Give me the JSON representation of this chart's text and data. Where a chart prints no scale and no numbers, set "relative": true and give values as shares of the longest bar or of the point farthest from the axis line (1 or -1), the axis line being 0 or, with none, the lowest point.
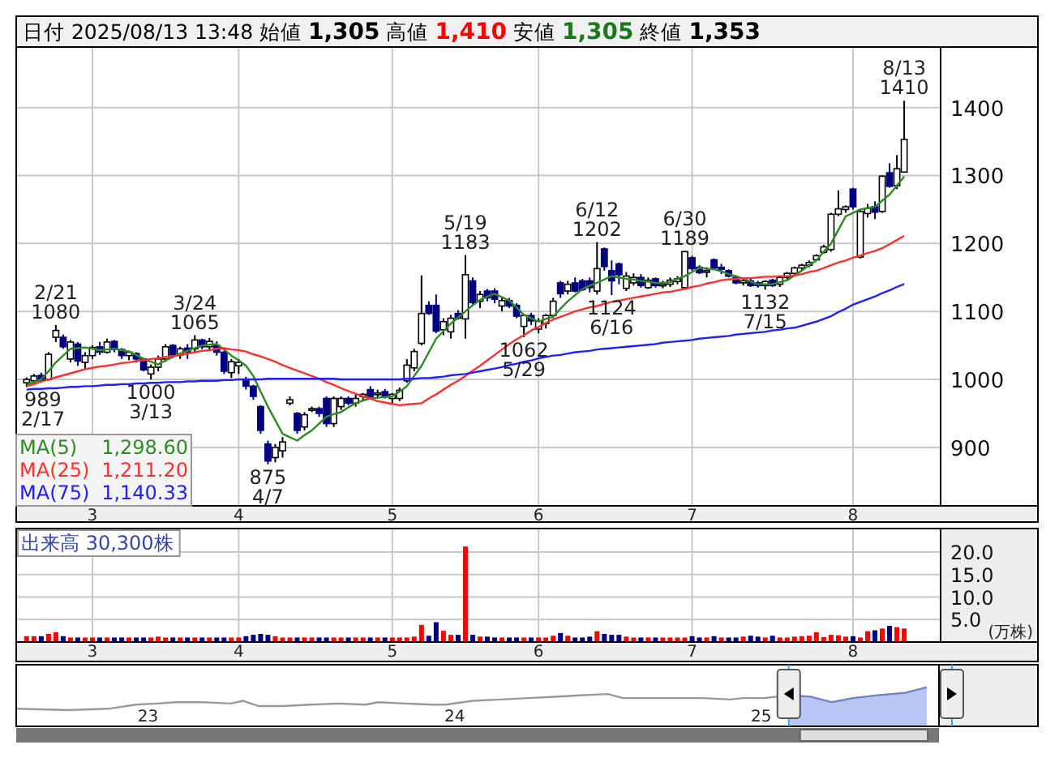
{
  "chart_data": [
    {
      "type": "candlestick",
      "title": "日付 2025/08/13 13:48 始値 **1,305** 高値 **1,410** 安値 **1,305** 終値 **1,353**",
      "categories": [
        null,
        null,
        null,
        null,
        null,
        null,
        null,
        null,
        null,
        "3",
        null,
        null,
        null,
        null,
        null,
        null,
        null,
        null,
        null,
        null,
        null,
        null,
        null,
        null,
        null,
        null,
        null,
        null,
        null,
        "4",
        null,
        null,
        null,
        null,
        null,
        null,
        null,
        null,
        null,
        null,
        null,
        null,
        null,
        null,
        null,
        null,
        null,
        null,
        null,
        null,
        "5",
        null,
        null,
        null,
        null,
        null,
        null,
        null,
        null,
        null,
        null,
        null,
        null,
        null,
        null,
        null,
        null,
        null,
        null,
        null,
        "6",
        null,
        null,
        null,
        null,
        null,
        null,
        null,
        null,
        null,
        null,
        null,
        null,
        null,
        null,
        null,
        null,
        null,
        null,
        null,
        null,
        "7",
        null,
        null,
        null,
        null,
        null,
        null,
        null,
        null,
        null,
        null,
        null,
        null,
        null,
        null,
        null,
        null,
        null,
        null,
        null,
        null,
        null,
        "8",
        null,
        null,
        null,
        null,
        null,
        null,
        null
      ],
      "ohlc": [
        [
          995,
          1003,
          989,
          1000
        ],
        [
          998,
          1008,
          994,
          1005
        ],
        [
          1006,
          1010,
          996,
          998
        ],
        [
          1000,
          1040,
          998,
          1037
        ],
        [
          1062,
          1080,
          1055,
          1072
        ],
        [
          1062,
          1066,
          1045,
          1048
        ],
        [
          1030,
          1058,
          1025,
          1055
        ],
        [
          1052,
          1055,
          1020,
          1027
        ],
        [
          1025,
          1040,
          1015,
          1035
        ],
        [
          1035,
          1050,
          1030,
          1047
        ],
        [
          1048,
          1055,
          1036,
          1040
        ],
        [
          1040,
          1060,
          1038,
          1055
        ],
        [
          1056,
          1058,
          1040,
          1044
        ],
        [
          1044,
          1046,
          1030,
          1035
        ],
        [
          1035,
          1042,
          1028,
          1040
        ],
        [
          1038,
          1040,
          1025,
          1030
        ],
        [
          1030,
          1032,
          1012,
          1014
        ],
        [
          1008,
          1022,
          1000,
          1018
        ],
        [
          1018,
          1035,
          1012,
          1030
        ],
        [
          1030,
          1052,
          1026,
          1048
        ],
        [
          1050,
          1052,
          1032,
          1036
        ],
        [
          1036,
          1048,
          1030,
          1045
        ],
        [
          1046,
          1052,
          1030,
          1040
        ],
        [
          1045,
          1065,
          1040,
          1058
        ],
        [
          1058,
          1060,
          1044,
          1048
        ],
        [
          1048,
          1061,
          1042,
          1056
        ],
        [
          1050,
          1056,
          1035,
          1040
        ],
        [
          1040,
          1042,
          1008,
          1012
        ],
        [
          1010,
          1030,
          1002,
          1026
        ],
        [
          1020,
          1030,
          1008,
          1025
        ],
        [
          1000,
          1004,
          985,
          990
        ],
        [
          990,
          992,
          970,
          975
        ],
        [
          960,
          962,
          920,
          925
        ],
        [
          905,
          910,
          875,
          880
        ],
        [
          885,
          905,
          878,
          900
        ],
        [
          895,
          915,
          885,
          908
        ],
        [
          965,
          975,
          962,
          970
        ],
        [
          950,
          952,
          920,
          925
        ],
        [
          930,
          952,
          925,
          948
        ],
        [
          955,
          960,
          952,
          957
        ],
        [
          957,
          960,
          945,
          950
        ],
        [
          972,
          975,
          930,
          935
        ],
        [
          935,
          975,
          930,
          972
        ],
        [
          960,
          975,
          955,
          972
        ],
        [
          972,
          975,
          962,
          965
        ],
        [
          965,
          978,
          960,
          972
        ],
        [
          975,
          980,
          968,
          978
        ],
        [
          985,
          990,
          972,
          975
        ],
        [
          978,
          985,
          972,
          980
        ],
        [
          982,
          986,
          972,
          975
        ],
        [
          972,
          980,
          965,
          978
        ],
        [
          972,
          988,
          968,
          984
        ],
        [
          998,
          1030,
          995,
          1021
        ],
        [
          1017,
          1045,
          1012,
          1041
        ],
        [
          1053,
          1153,
          1050,
          1097
        ],
        [
          1109,
          1115,
          1095,
          1097
        ],
        [
          1109,
          1125,
          1068,
          1071
        ],
        [
          1073,
          1090,
          1065,
          1085
        ],
        [
          1070,
          1095,
          1060,
          1090
        ],
        [
          1097,
          1102,
          1088,
          1090
        ],
        [
          1089,
          1183,
          1060,
          1154
        ],
        [
          1145,
          1150,
          1110,
          1113
        ],
        [
          1115,
          1130,
          1105,
          1125
        ],
        [
          1130,
          1133,
          1115,
          1120
        ],
        [
          1130,
          1134,
          1112,
          1118
        ],
        [
          1108,
          1120,
          1100,
          1116
        ],
        [
          1116,
          1120,
          1105,
          1108
        ],
        [
          1109,
          1112,
          1090,
          1093
        ],
        [
          1078,
          1096,
          1062,
          1094
        ],
        [
          1094,
          1098,
          1080,
          1086
        ],
        [
          1074,
          1090,
          1068,
          1086
        ],
        [
          1082,
          1096,
          1075,
          1094
        ],
        [
          1094,
          1120,
          1090,
          1115
        ],
        [
          1142,
          1145,
          1120,
          1126
        ],
        [
          1130,
          1145,
          1125,
          1140
        ],
        [
          1142,
          1150,
          1128,
          1130
        ],
        [
          1145,
          1148,
          1130,
          1132
        ],
        [
          1145,
          1150,
          1128,
          1135
        ],
        [
          1130,
          1202,
          1125,
          1163
        ],
        [
          1192,
          1194,
          1160,
          1166
        ],
        [
          1160,
          1175,
          1124,
          1145
        ],
        [
          1170,
          1172,
          1140,
          1154
        ],
        [
          1134,
          1158,
          1130,
          1152
        ],
        [
          1142,
          1156,
          1138,
          1150
        ],
        [
          1150,
          1155,
          1135,
          1138
        ],
        [
          1135,
          1150,
          1133,
          1146
        ],
        [
          1148,
          1150,
          1135,
          1138
        ],
        [
          1138,
          1145,
          1134,
          1140
        ],
        [
          1140,
          1150,
          1136,
          1146
        ],
        [
          1144,
          1152,
          1140,
          1148
        ],
        [
          1135,
          1189,
          1133,
          1188
        ],
        [
          1179,
          1182,
          1160,
          1163
        ],
        [
          1165,
          1168,
          1155,
          1157
        ],
        [
          1158,
          1165,
          1150,
          1160
        ],
        [
          1176,
          1178,
          1162,
          1164
        ],
        [
          1165,
          1170,
          1155,
          1162
        ],
        [
          1160,
          1162,
          1150,
          1152
        ],
        [
          1150,
          1152,
          1140,
          1142
        ],
        [
          1142,
          1148,
          1138,
          1145
        ],
        [
          1145,
          1148,
          1136,
          1138
        ],
        [
          1142,
          1145,
          1135,
          1138
        ],
        [
          1138,
          1146,
          1132,
          1144
        ],
        [
          1146,
          1148,
          1136,
          1138
        ],
        [
          1140,
          1152,
          1136,
          1150
        ],
        [
          1150,
          1158,
          1146,
          1156
        ],
        [
          1156,
          1166,
          1152,
          1164
        ],
        [
          1164,
          1170,
          1160,
          1168
        ],
        [
          1168,
          1175,
          1165,
          1172
        ],
        [
          1176,
          1184,
          1174,
          1182
        ],
        [
          1187,
          1198,
          1185,
          1195
        ],
        [
          1191,
          1245,
          1188,
          1243
        ],
        [
          1243,
          1278,
          1240,
          1251
        ],
        [
          1250,
          1256,
          1245,
          1254
        ],
        [
          1280,
          1282,
          1250,
          1254
        ],
        [
          1180,
          1250,
          1178,
          1247
        ],
        [
          1244,
          1258,
          1238,
          1252
        ],
        [
          1254,
          1262,
          1236,
          1246
        ],
        [
          1247,
          1300,
          1245,
          1299
        ],
        [
          1304,
          1318,
          1282,
          1284
        ],
        [
          1285,
          1330,
          1280,
          1310
        ],
        [
          1305,
          1410,
          1305,
          1353
        ]
      ],
      "series": [
        {
          "name": "MA(5)  1,298.60",
          "type": "line",
          "color": "#2e8b22",
          "values": [
            992,
            996,
            1000,
            1012,
            1025,
            1035,
            1045,
            1046,
            1047,
            1045,
            1043,
            1044,
            1045,
            1043,
            1041,
            1036,
            1030,
            1026,
            1022,
            1028,
            1033,
            1038,
            1042,
            1046,
            1050,
            1051,
            1052,
            1044,
            1035,
            1028,
            1020,
            1005,
            982,
            960,
            940,
            920,
            915,
            910,
            918,
            925,
            935,
            945,
            949,
            952,
            959,
            965,
            969,
            972,
            973,
            974,
            975,
            982,
            990,
            1005,
            1020,
            1040,
            1060,
            1071,
            1082,
            1091,
            1100,
            1109,
            1117,
            1122,
            1126,
            1121,
            1116,
            1106,
            1095,
            1090,
            1085,
            1089,
            1092,
            1104,
            1115,
            1124,
            1133,
            1138,
            1142,
            1147,
            1152,
            1150,
            1148,
            1147,
            1145,
            1144,
            1142,
            1142,
            1143,
            1148,
            1152,
            1158,
            1164,
            1163,
            1162,
            1159,
            1155,
            1152,
            1148,
            1144,
            1140,
            1140,
            1140,
            1143,
            1146,
            1153,
            1160,
            1168,
            1175,
            1188,
            1200,
            1220,
            1240,
            1245,
            1250,
            1252,
            1254,
            1263,
            1272,
            1285,
            1298.6
          ]
        },
        {
          "name": "MA(25)  1,211.20",
          "type": "line",
          "color": "#ff3030",
          "values": [
            990,
            993,
            997,
            1000,
            1003,
            1006,
            1009,
            1012,
            1015,
            1017,
            1019,
            1020,
            1022,
            1024,
            1025,
            1027,
            1028,
            1030,
            1031,
            1033,
            1034,
            1036,
            1038,
            1040,
            1042,
            1043,
            1045,
            1046,
            1044,
            1043,
            1041,
            1037,
            1034,
            1030,
            1026,
            1021,
            1017,
            1013,
            1009,
            1005,
            1001,
            996,
            992,
            987,
            983,
            979,
            975,
            972,
            968,
            966,
            964,
            962,
            963,
            964,
            965,
            972,
            978,
            985,
            992,
            998,
            1005,
            1013,
            1020,
            1028,
            1036,
            1044,
            1052,
            1059,
            1065,
            1072,
            1077,
            1083,
            1088,
            1092,
            1096,
            1100,
            1103,
            1106,
            1108,
            1111,
            1114,
            1116,
            1118,
            1120,
            1122,
            1124,
            1126,
            1128,
            1129,
            1131,
            1133,
            1136,
            1138,
            1141,
            1143,
            1146,
            1147,
            1148,
            1149,
            1149,
            1150,
            1151,
            1151,
            1152,
            1152,
            1153,
            1155,
            1158,
            1160,
            1164,
            1168,
            1172,
            1175,
            1179,
            1182,
            1186,
            1189,
            1193,
            1199,
            1205,
            1211.2
          ]
        },
        {
          "name": "MA(75)  1,140.33",
          "type": "line",
          "color": "#2020ff",
          "values": [
            985,
            986,
            986,
            987,
            987,
            988,
            989,
            989,
            990,
            990,
            991,
            992,
            992,
            993,
            993,
            994,
            994,
            995,
            995,
            996,
            996,
            996,
            997,
            997,
            998,
            998,
            998,
            999,
            999,
            1000,
            1000,
            1000,
            1000,
            1001,
            1001,
            1001,
            1001,
            1001,
            1001,
            1001,
            1001,
            1001,
            1001,
            1000,
            1000,
            1000,
            1000,
            1000,
            1000,
            1000,
            1000,
            1000,
            1001,
            1001,
            1002,
            1002,
            1003,
            1004,
            1006,
            1007,
            1008,
            1010,
            1012,
            1014,
            1016,
            1018,
            1021,
            1023,
            1026,
            1028,
            1031,
            1033,
            1035,
            1036,
            1038,
            1040,
            1041,
            1042,
            1044,
            1045,
            1046,
            1047,
            1048,
            1049,
            1050,
            1051,
            1052,
            1054,
            1055,
            1056,
            1057,
            1058,
            1060,
            1061,
            1062,
            1063,
            1064,
            1066,
            1067,
            1068,
            1069,
            1070,
            1072,
            1073,
            1075,
            1076,
            1079,
            1082,
            1085,
            1089,
            1093,
            1099,
            1104,
            1110,
            1114,
            1118,
            1122,
            1127,
            1131,
            1136,
            1140.33
          ]
        }
      ],
      "ylim": [
        814,
        1489
      ],
      "yticks": [
        900,
        1000,
        1100,
        1200,
        1300,
        1400
      ],
      "grid": true,
      "legend": "bottom left",
      "annotations": [
        {
          "text": "989 2/17",
          "y": 989
        },
        {
          "text": "2/21 1080",
          "y": 1080
        },
        {
          "text": "1000 3/13",
          "y": 1000
        },
        {
          "text": "3/24 1065",
          "y": 1065
        },
        {
          "text": "875 4/7",
          "y": 875
        },
        {
          "text": "5/19 1183",
          "y": 1183
        },
        {
          "text": "1062 5/29",
          "y": 1062
        },
        {
          "text": "6/12 1202",
          "y": 1202
        },
        {
          "text": "1124 6/16",
          "y": 1124
        },
        {
          "text": "6/30 1189",
          "y": 1189
        },
        {
          "text": "1132 7/15",
          "y": 1132
        },
        {
          "text": "8/13 1410",
          "y": 1410
        }
      ]
    },
    {
      "type": "bar",
      "title": "出来高  30,300株",
      "ylabel": "(万株)",
      "categories": [
        null,
        null,
        null,
        null,
        null,
        null,
        null,
        null,
        null,
        "3",
        null,
        null,
        null,
        null,
        null,
        null,
        null,
        null,
        null,
        null,
        null,
        null,
        null,
        null,
        null,
        null,
        null,
        null,
        null,
        "4",
        null,
        null,
        null,
        null,
        null,
        null,
        null,
        null,
        null,
        null,
        null,
        null,
        null,
        null,
        null,
        null,
        null,
        null,
        null,
        null,
        "5",
        null,
        null,
        null,
        null,
        null,
        null,
        null,
        null,
        null,
        null,
        null,
        null,
        null,
        null,
        null,
        null,
        null,
        null,
        null,
        "6",
        null,
        null,
        null,
        null,
        null,
        null,
        null,
        null,
        null,
        null,
        null,
        null,
        null,
        null,
        null,
        null,
        null,
        null,
        null,
        null,
        "7",
        null,
        null,
        null,
        null,
        null,
        null,
        null,
        null,
        null,
        null,
        null,
        null,
        null,
        null,
        null,
        null,
        null,
        null,
        null,
        null,
        null,
        "8",
        null,
        null,
        null,
        null,
        null,
        null,
        null
      ],
      "values": [
        1.3,
        1.3,
        1.3,
        1.8,
        2.2,
        1.3,
        1.0,
        1.0,
        1.0,
        1.0,
        1.0,
        1.0,
        1.0,
        1.0,
        1.0,
        1.0,
        1.0,
        1.0,
        1.2,
        1.0,
        1.0,
        1.0,
        1.0,
        1.0,
        1.0,
        1.0,
        1.0,
        1.0,
        1.0,
        1.0,
        1.3,
        1.6,
        1.8,
        1.6,
        1.3,
        1.0,
        1.0,
        1.0,
        1.0,
        1.0,
        1.0,
        1.0,
        1.0,
        1.0,
        1.0,
        1.0,
        1.0,
        1.0,
        1.0,
        1.0,
        1.0,
        1.0,
        1.0,
        1.2,
        3.8,
        1.4,
        4.4,
        2.5,
        1.6,
        1.6,
        21.2,
        1.6,
        1.2,
        1.2,
        1.0,
        1.0,
        1.0,
        1.0,
        1.0,
        1.0,
        1.0,
        1.0,
        1.4,
        2.0,
        1.4,
        1.0,
        1.0,
        1.2,
        2.4,
        1.8,
        1.6,
        1.6,
        1.2,
        1.0,
        1.0,
        1.0,
        1.0,
        1.0,
        1.0,
        1.0,
        1.0,
        1.3,
        1.0,
        1.0,
        1.3,
        1.0,
        1.0,
        1.0,
        1.2,
        1.4,
        1.2,
        1.0,
        1.4,
        1.0,
        1.0,
        1.2,
        1.3,
        1.4,
        2.2,
        1.1,
        1.6,
        1.5,
        1.2,
        1.3,
        1.0,
        2.4,
        2.6,
        3.0,
        3.6,
        3.3,
        3.0
      ],
      "colors": [
        "#ff0000",
        "#ff0000",
        "#000080",
        "#ff0000",
        "#ff0000",
        "#000080",
        "#ff0000",
        "#000080",
        "#ff0000",
        "#ff0000",
        "#000080",
        "#ff0000",
        "#000080",
        "#000080",
        "#ff0000",
        "#000080",
        "#000080",
        "#ff0000",
        "#ff0000",
        "#ff0000",
        "#000080",
        "#ff0000",
        "#000080",
        "#ff0000",
        "#000080",
        "#ff0000",
        "#000080",
        "#000080",
        "#ff0000",
        "#ff0000",
        "#000080",
        "#000080",
        "#000080",
        "#000080",
        "#ff0000",
        "#ff0000",
        "#ff0000",
        "#000080",
        "#ff0000",
        "#ff0000",
        "#000080",
        "#000080",
        "#ff0000",
        "#ff0000",
        "#000080",
        "#ff0000",
        "#ff0000",
        "#000080",
        "#ff0000",
        "#000080",
        "#ff0000",
        "#ff0000",
        "#ff0000",
        "#ff0000",
        "#ff0000",
        "#000080",
        "#000080",
        "#ff0000",
        "#ff0000",
        "#000080",
        "#ff0000",
        "#000080",
        "#ff0000",
        "#000080",
        "#000080",
        "#ff0000",
        "#000080",
        "#000080",
        "#ff0000",
        "#000080",
        "#ff0000",
        "#ff0000",
        "#ff0000",
        "#000080",
        "#ff0000",
        "#000080",
        "#000080",
        "#000080",
        "#ff0000",
        "#000080",
        "#000080",
        "#000080",
        "#ff0000",
        "#ff0000",
        "#000080",
        "#ff0000",
        "#000080",
        "#ff0000",
        "#ff0000",
        "#ff0000",
        "#ff0000",
        "#000080",
        "#000080",
        "#ff0000",
        "#000080",
        "#ff0000",
        "#000080",
        "#000080",
        "#ff0000",
        "#000080",
        "#000080",
        "#ff0000",
        "#000080",
        "#ff0000",
        "#ff0000",
        "#ff0000",
        "#ff0000",
        "#ff0000",
        "#ff0000",
        "#ff0000",
        "#ff0000",
        "#ff0000",
        "#ff0000",
        "#000080",
        "#ff0000",
        "#ff0000",
        "#000080",
        "#ff0000",
        "#000080",
        "#ff0000",
        "#ff0000"
      ],
      "ylim": [
        0,
        25.2
      ],
      "yticks": [
        {
          "value": 5,
          "label": "5.0"
        },
        {
          "value": 10,
          "label": "10.0"
        },
        {
          "value": 15,
          "label": "15.0"
        },
        {
          "value": 20,
          "label": "20.0"
        }
      ],
      "grid": true
    },
    {
      "type": "line",
      "relative": true,
      "series": [
        {
          "color": "#999999",
          "x": [
            22.57,
            22.74,
            22.87,
            22.96,
            23.03,
            23.09,
            23.18,
            23.27,
            23.31,
            23.36,
            23.44,
            23.53,
            23.62,
            23.71,
            23.75,
            23.84,
            23.93,
            23.97,
            24.06,
            24.15,
            24.24,
            24.33,
            24.41,
            24.5,
            24.55,
            24.63,
            24.72,
            24.81,
            24.9,
            24.94,
            25.01,
            25.09,
            25.16,
            25.23,
            25.3,
            25.38,
            25.47,
            25.54
          ],
          "values": [
            0.06,
            0,
            0.06,
            0.24,
            0.29,
            0.35,
            0.35,
            0.29,
            0.41,
            0.18,
            0.18,
            0.24,
            0.29,
            0.24,
            0.35,
            0.29,
            0.24,
            0.24,
            0.41,
            0.47,
            0.53,
            0.59,
            0.65,
            0.71,
            0.53,
            0.53,
            0.53,
            0.53,
            0.47,
            0.53,
            0.53,
            0.65,
            0.59,
            0.35,
            0.53,
            0.65,
            0.76,
            1
          ]
        },
        {
          "type": "area",
          "color": "#b8c6f6",
          "x": [
            25.09,
            25.16,
            25.23,
            25.3,
            25.38,
            25.47,
            25.54
          ],
          "values": [
            0.65,
            0.59,
            0.35,
            0.53,
            0.65,
            0.76,
            1
          ]
        }
      ],
      "xlim": [
        22.57,
        25.58
      ],
      "xticks": [
        23,
        24,
        25
      ]
    }
  ]
}
